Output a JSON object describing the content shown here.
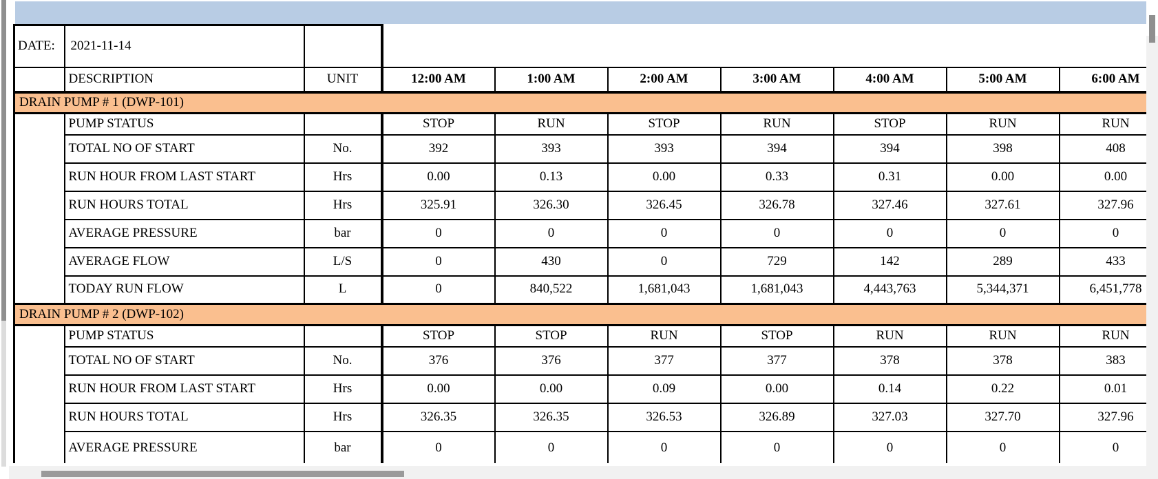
{
  "banner": {
    "color": "#b8cce4"
  },
  "date_row": {
    "label": "DATE:",
    "value": "2021-11-14"
  },
  "header": {
    "description": "DESCRIPTION",
    "unit": "UNIT",
    "hours": [
      "12:00 AM",
      "1:00 AM",
      "2:00 AM",
      "3:00 AM",
      "4:00 AM",
      "5:00 AM",
      "6:00 AM"
    ]
  },
  "sections": [
    {
      "title": "DRAIN PUMP # 1 (DWP-101)",
      "rows": [
        {
          "label": "PUMP STATUS",
          "unit": "",
          "type": "status",
          "values": [
            "STOP",
            "RUN",
            "STOP",
            "RUN",
            "STOP",
            "RUN",
            "RUN"
          ]
        },
        {
          "label": "TOTAL NO OF START",
          "unit": "No.",
          "values": [
            "392",
            "393",
            "393",
            "394",
            "394",
            "398",
            "408"
          ]
        },
        {
          "label": "RUN HOUR FROM LAST START",
          "unit": "Hrs",
          "values": [
            "0.00",
            "0.13",
            "0.00",
            "0.33",
            "0.31",
            "0.00",
            "0.00"
          ]
        },
        {
          "label": "RUN HOURS TOTAL",
          "unit": "Hrs",
          "values": [
            "325.91",
            "326.30",
            "326.45",
            "326.78",
            "327.46",
            "327.61",
            "327.96"
          ]
        },
        {
          "label": "AVERAGE PRESSURE",
          "unit": "bar",
          "values": [
            "0",
            "0",
            "0",
            "0",
            "0",
            "0",
            "0"
          ]
        },
        {
          "label": "AVERAGE FLOW",
          "unit": "L/S",
          "values": [
            "0",
            "430",
            "0",
            "729",
            "142",
            "289",
            "433"
          ]
        },
        {
          "label": "TODAY RUN FLOW",
          "unit": "L",
          "values": [
            "0",
            "840,522",
            "1,681,043",
            "1,681,043",
            "4,443,763",
            "5,344,371",
            "6,451,778"
          ]
        }
      ]
    },
    {
      "title": "DRAIN PUMP # 2 (DWP-102)",
      "rows": [
        {
          "label": "PUMP STATUS",
          "unit": "",
          "type": "status",
          "values": [
            "STOP",
            "STOP",
            "RUN",
            "STOP",
            "RUN",
            "RUN",
            "RUN"
          ]
        },
        {
          "label": "TOTAL NO OF START",
          "unit": "No.",
          "values": [
            "376",
            "376",
            "377",
            "377",
            "378",
            "378",
            "383"
          ]
        },
        {
          "label": "RUN HOUR FROM LAST START",
          "unit": "Hrs",
          "values": [
            "0.00",
            "0.00",
            "0.09",
            "0.00",
            "0.14",
            "0.22",
            "0.01"
          ]
        },
        {
          "label": "RUN HOURS TOTAL",
          "unit": "Hrs",
          "values": [
            "326.35",
            "326.35",
            "326.53",
            "326.89",
            "327.03",
            "327.70",
            "327.96"
          ]
        },
        {
          "label": "AVERAGE PRESSURE",
          "unit": "bar",
          "type": "last",
          "values": [
            "0",
            "0",
            "0",
            "0",
            "0",
            "0",
            "0"
          ]
        }
      ]
    }
  ],
  "colors": {
    "banner_blue": "#b8cce4",
    "section_band_orange": "#fabf8f",
    "border_black": "#000000",
    "scroll_thumb_gray": "#8f8f8f",
    "scroll_track_gray": "#f1f1f1"
  }
}
